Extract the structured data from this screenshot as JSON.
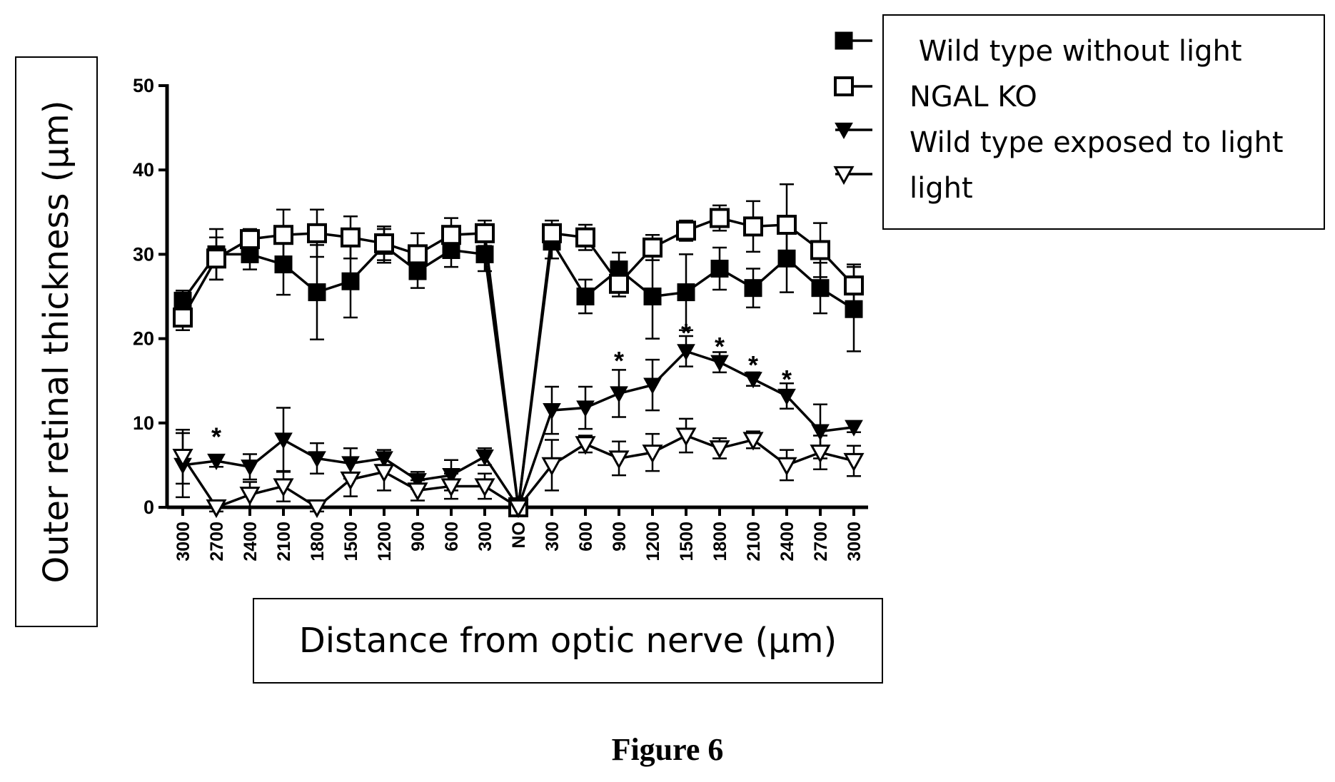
{
  "chart_data": {
    "type": "line",
    "ylabel": "Outer retinal thickness (µm)",
    "xlabel": "Distance from optic nerve (µm)",
    "caption": "Figure 6",
    "ylim": [
      0,
      50
    ],
    "yticks": [
      0,
      10,
      20,
      30,
      40,
      50
    ],
    "categories": [
      "3000",
      "2700",
      "2400",
      "2100",
      "1800",
      "1500",
      "1200",
      "900",
      "600",
      "300",
      "NO",
      "300",
      "600",
      "900",
      "1200",
      "1500",
      "1800",
      "2100",
      "2400",
      "2700",
      "3000"
    ],
    "legend_position": "top-right",
    "series": [
      {
        "name": " Wild type without light",
        "marker": "square-filled",
        "values": [
          24.5,
          30,
          30,
          28.8,
          25.5,
          26.8,
          31,
          28,
          30.5,
          30,
          0,
          31.5,
          25,
          28.2,
          25,
          25.5,
          28.3,
          26,
          29.5,
          26,
          23.5
        ],
        "errors": [
          1.2,
          3,
          1.8,
          3.6,
          5.6,
          4.3,
          2,
          2,
          2,
          2,
          0,
          2,
          2,
          2,
          5,
          4.5,
          2.5,
          2.3,
          4,
          3,
          5
        ]
      },
      {
        "name": "NGAL KO",
        "marker": "square-open",
        "values": [
          22.5,
          29.5,
          31.8,
          32.3,
          32.5,
          32,
          31.3,
          30,
          32.3,
          32.5,
          0,
          32.5,
          32,
          26.5,
          30.8,
          32.8,
          34.3,
          33.3,
          33.5,
          30.5,
          26.3
        ],
        "errors": [
          1.5,
          2.5,
          1.2,
          3,
          2.8,
          2.5,
          2,
          2.5,
          2,
          1.5,
          0,
          1.5,
          1.5,
          1.5,
          1.5,
          1.2,
          1.5,
          3,
          4.8,
          3.2,
          2.5
        ]
      },
      {
        "name": "Wild type exposed to light",
        "marker": "triangle-down-filled",
        "values": [
          5,
          5.5,
          4.8,
          8,
          5.8,
          5.2,
          5.8,
          3.2,
          3.8,
          6,
          0,
          11.5,
          11.8,
          13.5,
          14.5,
          18.5,
          17.2,
          15.2,
          13.2,
          9,
          9.5
        ],
        "errors": [
          3.8,
          0.7,
          1.5,
          3.8,
          1.8,
          1.8,
          1,
          1,
          1.8,
          1,
          0,
          2.8,
          2.5,
          2.8,
          3,
          1.8,
          1.2,
          0.8,
          1.5,
          3.2,
          0.6
        ]
      },
      {
        "name": "light",
        "marker": "triangle-down-open",
        "values": [
          6,
          0,
          1.5,
          2.5,
          0,
          3.3,
          4.2,
          2,
          2.5,
          2.5,
          0,
          5,
          7.5,
          5.8,
          6.5,
          8.5,
          7,
          8,
          5,
          6.5,
          5.5
        ],
        "errors": [
          3.2,
          0.5,
          1.5,
          1.8,
          0.5,
          2,
          2.2,
          1.2,
          1.5,
          1.5,
          0,
          3,
          1,
          2,
          2.2,
          2,
          1.2,
          1,
          1.8,
          2,
          1.8
        ]
      }
    ],
    "annotations": [
      {
        "text": "*",
        "category_index": 1,
        "y": 8.5
      },
      {
        "text": "*",
        "category_index": 13,
        "y": 17.5
      },
      {
        "text": "*",
        "category_index": 15,
        "y": 20.8
      },
      {
        "text": "*",
        "category_index": 16,
        "y": 19.2
      },
      {
        "text": "*",
        "category_index": 17,
        "y": 17.0
      },
      {
        "text": "*",
        "category_index": 18,
        "y": 15.3
      }
    ]
  }
}
